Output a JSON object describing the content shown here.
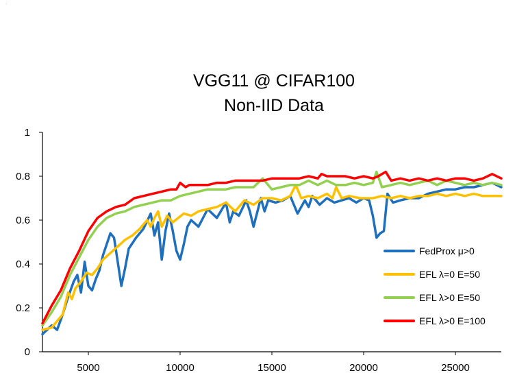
{
  "chart_data": {
    "type": "line",
    "title": [
      "VGG11 @ CIFAR100",
      "Non-IID Data"
    ],
    "xlabel": "",
    "ylabel": "",
    "xlim": [
      2500,
      27500
    ],
    "ylim": [
      0,
      1
    ],
    "xticks": [
      5000,
      10000,
      15000,
      20000,
      25000
    ],
    "yticks": [
      0,
      0.2,
      0.4,
      0.6,
      0.8,
      1
    ],
    "ytick_labels": [
      "0",
      "0.2",
      "0.4",
      "0.6",
      "0.8",
      "1"
    ],
    "grid": false,
    "legend_position": "bottom-right",
    "colors": {
      "fedprox": "#1f6fbf",
      "efl50_l0": "#ffc000",
      "efl50": "#92d050",
      "efl100": "#ff0000"
    },
    "series": [
      {
        "name": "FedProx μ>0",
        "color": "#1f6fbf",
        "x": [
          2500,
          3000,
          3300,
          3600,
          3900,
          4200,
          4400,
          4600,
          4800,
          5000,
          5200,
          5400,
          5600,
          5800,
          6000,
          6200,
          6400,
          6600,
          6800,
          7000,
          7200,
          7600,
          8000,
          8400,
          8600,
          8800,
          9000,
          9200,
          9400,
          9600,
          9800,
          10000,
          10200,
          10400,
          10600,
          11000,
          11500,
          12000,
          12500,
          12700,
          12900,
          13200,
          13600,
          13800,
          14000,
          14400,
          14600,
          14800,
          15200,
          15600,
          16000,
          16400,
          16800,
          17000,
          17200,
          17600,
          18000,
          18400,
          18800,
          19200,
          19600,
          20000,
          20300,
          20500,
          20700,
          20900,
          21100,
          21300,
          21600,
          22000,
          22500,
          23000,
          23500,
          24000,
          24500,
          25000,
          25500,
          26000,
          26500,
          27000,
          27500
        ],
        "y": [
          0.08,
          0.12,
          0.1,
          0.17,
          0.25,
          0.32,
          0.35,
          0.27,
          0.41,
          0.3,
          0.28,
          0.33,
          0.37,
          0.44,
          0.49,
          0.54,
          0.52,
          0.41,
          0.3,
          0.38,
          0.47,
          0.52,
          0.56,
          0.63,
          0.53,
          0.59,
          0.42,
          0.55,
          0.63,
          0.55,
          0.46,
          0.42,
          0.49,
          0.57,
          0.6,
          0.57,
          0.65,
          0.61,
          0.68,
          0.59,
          0.64,
          0.62,
          0.69,
          0.64,
          0.57,
          0.7,
          0.64,
          0.69,
          0.68,
          0.69,
          0.71,
          0.63,
          0.69,
          0.66,
          0.71,
          0.67,
          0.7,
          0.68,
          0.69,
          0.7,
          0.68,
          0.7,
          0.69,
          0.62,
          0.52,
          0.54,
          0.55,
          0.72,
          0.68,
          0.69,
          0.7,
          0.7,
          0.72,
          0.73,
          0.74,
          0.74,
          0.75,
          0.75,
          0.76,
          0.77,
          0.75
        ]
      },
      {
        "name": "EFL λ=0 E=50",
        "color": "#ffc000",
        "x": [
          2500,
          3000,
          3300,
          3600,
          3900,
          4100,
          4300,
          4600,
          4900,
          5200,
          5500,
          5800,
          6200,
          6600,
          7000,
          7400,
          7800,
          8200,
          8400,
          8600,
          8800,
          9000,
          9300,
          9600,
          9900,
          10200,
          10600,
          11000,
          11500,
          12000,
          12500,
          13000,
          13500,
          14000,
          14500,
          15000,
          15500,
          16000,
          16300,
          16600,
          17000,
          17500,
          18000,
          18300,
          18500,
          18800,
          19200,
          19800,
          20500,
          21000,
          21500,
          22000,
          22500,
          23000,
          23500,
          24000,
          24500,
          25000,
          25500,
          26000,
          26500,
          27000,
          27500
        ],
        "y": [
          0.1,
          0.11,
          0.14,
          0.17,
          0.27,
          0.24,
          0.29,
          0.32,
          0.36,
          0.35,
          0.38,
          0.42,
          0.45,
          0.48,
          0.51,
          0.53,
          0.56,
          0.6,
          0.57,
          0.61,
          0.64,
          0.57,
          0.62,
          0.59,
          0.61,
          0.63,
          0.62,
          0.64,
          0.65,
          0.66,
          0.68,
          0.64,
          0.69,
          0.67,
          0.7,
          0.7,
          0.69,
          0.71,
          0.76,
          0.7,
          0.71,
          0.7,
          0.72,
          0.7,
          0.75,
          0.7,
          0.71,
          0.7,
          0.7,
          0.71,
          0.7,
          0.71,
          0.7,
          0.71,
          0.71,
          0.72,
          0.71,
          0.72,
          0.71,
          0.72,
          0.71,
          0.71,
          0.71
        ]
      },
      {
        "name": "EFL λ>0 E=50",
        "color": "#92d050",
        "x": [
          2500,
          3000,
          3500,
          4000,
          4500,
          5000,
          5500,
          6000,
          6500,
          7000,
          7500,
          8000,
          8500,
          9000,
          9500,
          10000,
          10500,
          11000,
          11500,
          12000,
          12500,
          13000,
          13500,
          14000,
          14500,
          15000,
          15500,
          16000,
          16500,
          17000,
          17500,
          18000,
          18500,
          19000,
          19500,
          20000,
          20500,
          20700,
          21000,
          21500,
          22000,
          22500,
          23000,
          23500,
          24000,
          24500,
          25000,
          25500,
          26000,
          26500,
          27000,
          27500
        ],
        "y": [
          0.12,
          0.18,
          0.25,
          0.35,
          0.43,
          0.51,
          0.57,
          0.61,
          0.63,
          0.64,
          0.66,
          0.67,
          0.68,
          0.69,
          0.69,
          0.71,
          0.72,
          0.73,
          0.74,
          0.74,
          0.74,
          0.75,
          0.75,
          0.75,
          0.79,
          0.74,
          0.75,
          0.76,
          0.76,
          0.78,
          0.76,
          0.78,
          0.76,
          0.76,
          0.77,
          0.76,
          0.77,
          0.82,
          0.75,
          0.76,
          0.77,
          0.76,
          0.77,
          0.78,
          0.76,
          0.78,
          0.77,
          0.76,
          0.77,
          0.76,
          0.77,
          0.76
        ]
      },
      {
        "name": "EFL λ>0 E=100",
        "color": "#ff0000",
        "x": [
          2500,
          3000,
          3500,
          4000,
          4500,
          5000,
          5500,
          6000,
          6500,
          7000,
          7500,
          8000,
          8500,
          9000,
          9500,
          9800,
          10000,
          10300,
          10500,
          11000,
          11500,
          12000,
          12500,
          13000,
          13500,
          14000,
          14500,
          15000,
          15500,
          16000,
          16500,
          17000,
          17500,
          17700,
          18000,
          18500,
          19000,
          19500,
          20000,
          20500,
          20800,
          21000,
          21200,
          21500,
          22000,
          22500,
          23000,
          23500,
          24000,
          24500,
          25000,
          25500,
          26000,
          26500,
          27000,
          27500
        ],
        "y": [
          0.13,
          0.21,
          0.28,
          0.38,
          0.46,
          0.55,
          0.61,
          0.64,
          0.66,
          0.67,
          0.7,
          0.71,
          0.72,
          0.73,
          0.74,
          0.74,
          0.77,
          0.75,
          0.76,
          0.76,
          0.76,
          0.77,
          0.77,
          0.78,
          0.78,
          0.78,
          0.78,
          0.79,
          0.79,
          0.79,
          0.79,
          0.8,
          0.79,
          0.81,
          0.8,
          0.8,
          0.8,
          0.79,
          0.8,
          0.79,
          0.8,
          0.81,
          0.82,
          0.78,
          0.79,
          0.78,
          0.79,
          0.78,
          0.79,
          0.78,
          0.79,
          0.79,
          0.78,
          0.79,
          0.81,
          0.79
        ]
      }
    ]
  }
}
